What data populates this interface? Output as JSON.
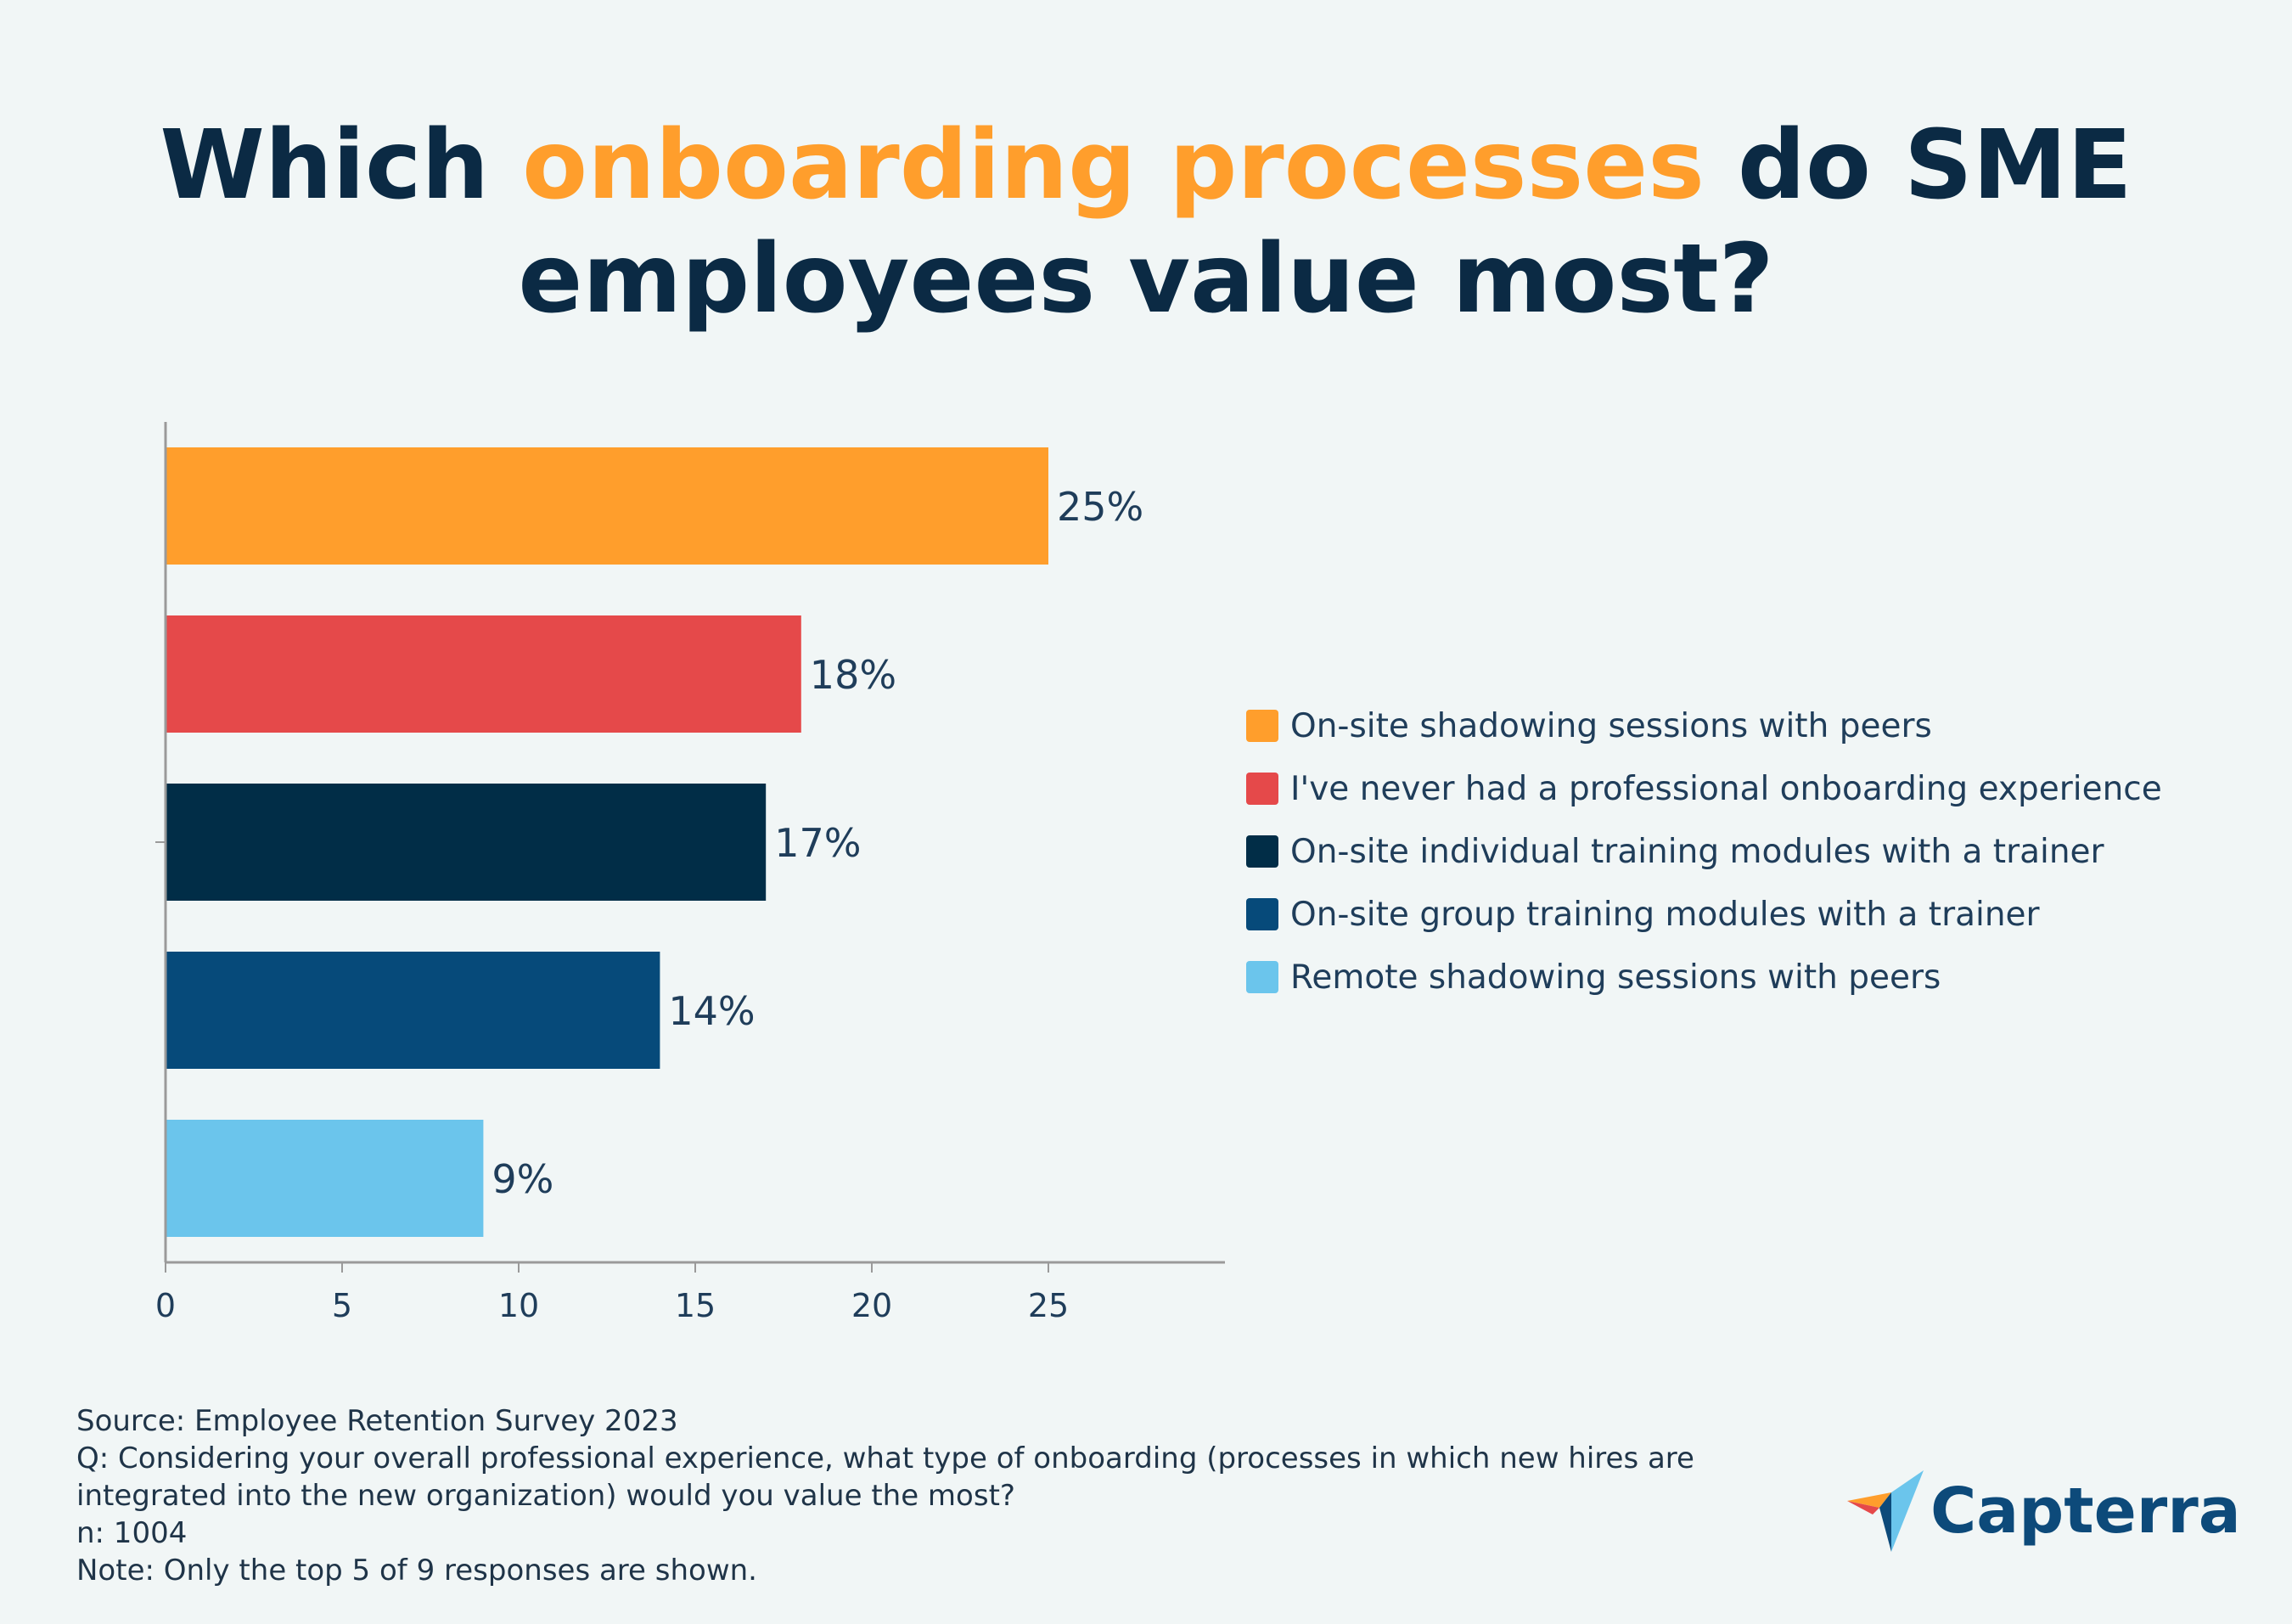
{
  "title": {
    "part1": "Which ",
    "highlight": "onboarding processes",
    "part2": " do SME",
    "line2": "employees value most?"
  },
  "colors": {
    "accent": "#ff9e2c",
    "dark": "#0b2a44"
  },
  "chart_data": {
    "type": "bar",
    "orientation": "horizontal",
    "categories": [
      "On-site shadowing sessions with peers",
      "I've never had a professional onboarding experience",
      "On-site individual training modules with a trainer",
      "On-site group training modules with a trainer",
      "Remote shadowing sessions with peers"
    ],
    "values": [
      25,
      18,
      17,
      14,
      9
    ],
    "data_labels": [
      "25%",
      "18%",
      "17%",
      "14%",
      "9%"
    ],
    "bar_colors": [
      "#ff9e2c",
      "#e5494a",
      "#012d47",
      "#064a7a",
      "#6bc5ec"
    ],
    "xlim": [
      0,
      30
    ],
    "x_ticks": [
      0,
      5,
      10,
      15,
      20,
      25
    ],
    "x_tick_labels": [
      "0",
      "5",
      "10",
      "15",
      "20",
      "25"
    ],
    "xlabel": "",
    "ylabel": "",
    "legend_position": "right"
  },
  "legend": {
    "items": [
      {
        "label": "On-site shadowing sessions with peers",
        "color": "#ff9e2c"
      },
      {
        "label": "I've never had a professional onboarding experience",
        "color": "#e5494a"
      },
      {
        "label": "On-site individual training modules with a trainer",
        "color": "#012d47"
      },
      {
        "label": "On-site group training modules with a trainer",
        "color": "#064a7a"
      },
      {
        "label": "Remote shadowing sessions with peers",
        "color": "#6bc5ec"
      }
    ]
  },
  "notes": {
    "source": "Source: Employee Retention Survey 2023",
    "question_line1": "Q: Considering your overall professional experience, what type of onboarding (processes in which new hires are",
    "question_line2": "integrated into the new organization) would you value the most?",
    "sample": "n: 1004",
    "note": "Note: Only the top 5 of 9 responses are shown."
  },
  "logo": {
    "text": "Capterra",
    "icon": "capterra-arrow-icon"
  }
}
